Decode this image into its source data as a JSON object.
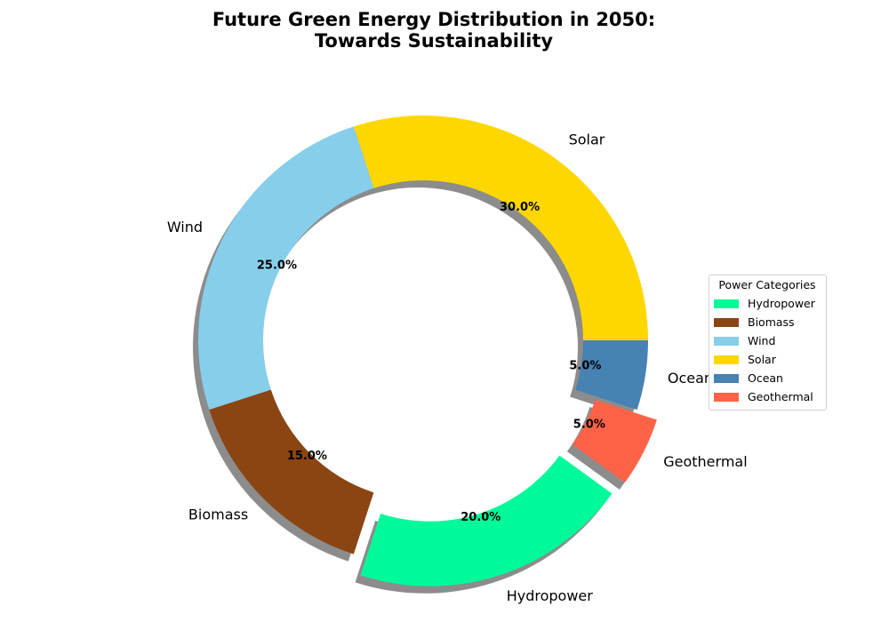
{
  "chart_data": {
    "type": "pie",
    "style": "donut",
    "title": "Future Green Energy Distribution in 2050:\nTowards Sustainability",
    "categories": [
      "Solar",
      "Wind",
      "Biomass",
      "Hydropower",
      "Geothermal",
      "Ocean"
    ],
    "values": [
      30.0,
      25.0,
      15.0,
      20.0,
      5.0,
      5.0
    ],
    "percent_labels": [
      "30.0%",
      "25.0%",
      "15.0%",
      "20.0%",
      "5.0%",
      "5.0%"
    ],
    "colors": [
      "#FFD700",
      "#87CEEB",
      "#8B4513",
      "#00FA9A",
      "#FF6347",
      "#4682B4"
    ],
    "exploded": [
      "Hydropower",
      "Geothermal"
    ],
    "shadow": true,
    "legend": {
      "title": "Power Categories",
      "placement": "right",
      "entries": [
        "Hydropower",
        "Biomass",
        "Wind",
        "Solar",
        "Ocean",
        "Geothermal"
      ],
      "colors": [
        "#00FA9A",
        "#8B4513",
        "#87CEEB",
        "#FFD700",
        "#4682B4",
        "#FF6347"
      ]
    }
  }
}
